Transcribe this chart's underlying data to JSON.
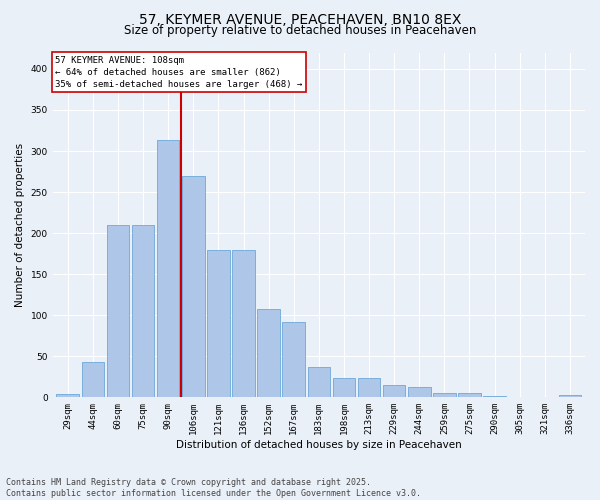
{
  "title1": "57, KEYMER AVENUE, PEACEHAVEN, BN10 8EX",
  "title2": "Size of property relative to detached houses in Peacehaven",
  "xlabel": "Distribution of detached houses by size in Peacehaven",
  "ylabel": "Number of detached properties",
  "categories": [
    "29sqm",
    "44sqm",
    "60sqm",
    "75sqm",
    "90sqm",
    "106sqm",
    "121sqm",
    "136sqm",
    "152sqm",
    "167sqm",
    "183sqm",
    "198sqm",
    "213sqm",
    "229sqm",
    "244sqm",
    "259sqm",
    "275sqm",
    "290sqm",
    "305sqm",
    "321sqm",
    "336sqm"
  ],
  "values": [
    4,
    43,
    210,
    210,
    314,
    270,
    180,
    180,
    108,
    92,
    37,
    23,
    23,
    15,
    13,
    5,
    5,
    2,
    1,
    0,
    3
  ],
  "bar_color": "#aec6e8",
  "bar_edge_color": "#5a9fd4",
  "ref_line_color": "#cc0000",
  "ref_line_index": 5,
  "annotation_line1": "57 KEYMER AVENUE: 108sqm",
  "annotation_line2": "← 64% of detached houses are smaller (862)",
  "annotation_line3": "35% of semi-detached houses are larger (468) →",
  "ylim": [
    0,
    420
  ],
  "yticks": [
    0,
    50,
    100,
    150,
    200,
    250,
    300,
    350,
    400
  ],
  "bg_color": "#eaf0f8",
  "grid_color": "#ffffff",
  "footer": "Contains HM Land Registry data © Crown copyright and database right 2025.\nContains public sector information licensed under the Open Government Licence v3.0.",
  "title_fontsize": 10,
  "subtitle_fontsize": 8.5,
  "axis_label_fontsize": 7.5,
  "tick_fontsize": 6.5,
  "annot_fontsize": 6.5,
  "footer_fontsize": 6,
  "ylabel_fontsize": 7.5
}
